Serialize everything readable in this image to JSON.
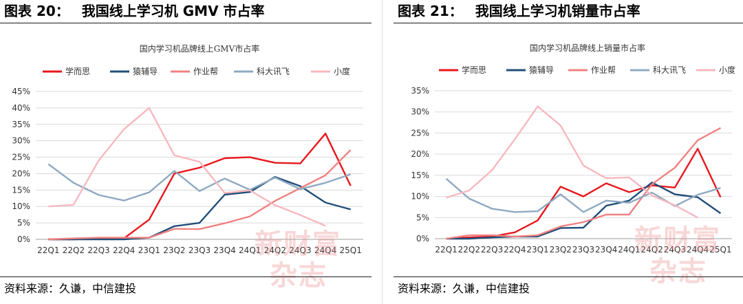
{
  "panels": [
    {
      "label": "图表 20：",
      "heading": "我国线上学习机 GMV 市占率",
      "source": "资料来源：久谦，中信建投",
      "watermark": [
        "新财富",
        "杂志"
      ]
    },
    {
      "label": "图表 21：",
      "heading": "我国线上学习机销量市占率",
      "source": "资料来源：久谦，中信建投",
      "watermark": [
        "新财富",
        "杂志"
      ]
    }
  ],
  "chart_data": [
    {
      "type": "line",
      "title": "国内学习机品牌线上GMV市占率",
      "categories": [
        "22Q1",
        "22Q2",
        "22Q3",
        "22Q4",
        "23Q1",
        "23Q2",
        "23Q3",
        "23Q4",
        "24Q1",
        "24Q2",
        "24Q3",
        "24Q4",
        "25Q1"
      ],
      "yticks": [
        "0%",
        "5%",
        "10%",
        "15%",
        "20%",
        "25%",
        "30%",
        "35%",
        "40%",
        "45%"
      ],
      "ylim": [
        0,
        45
      ],
      "grid": true,
      "legend_position": "top",
      "series": [
        {
          "name": "学而思",
          "color": "#e8161c",
          "values": [
            0,
            0,
            0.3,
            0.3,
            6,
            20,
            21.8,
            24.7,
            25,
            23.3,
            23.1,
            32.2,
            16.3
          ]
        },
        {
          "name": "猿辅导",
          "color": "#1f4e79",
          "values": [
            0,
            0,
            0,
            0,
            0.5,
            4,
            5,
            13.6,
            14.4,
            19,
            16.2,
            11.2,
            9.1
          ]
        },
        {
          "name": "作业帮",
          "color": "#f08080",
          "values": [
            0,
            0.3,
            0.5,
            0.5,
            0.5,
            3.2,
            3.1,
            4.9,
            7,
            11.7,
            15.6,
            19.5,
            27.2
          ]
        },
        {
          "name": "科大讯飞",
          "color": "#8ea9c1",
          "values": [
            22.9,
            17.2,
            13.5,
            11.8,
            14.3,
            20.8,
            14.7,
            18.5,
            15.1,
            18.8,
            15.3,
            17.2,
            19.8
          ]
        },
        {
          "name": "小度",
          "color": "#f7b8bf",
          "values": [
            10,
            10.5,
            24,
            33.5,
            40,
            25.6,
            23.6,
            14.1,
            14.9,
            10.4,
            7.4,
            4.1,
            null
          ]
        }
      ]
    },
    {
      "type": "line",
      "title": "国内学习机品牌线上销量市占率",
      "categories": [
        "22Q1",
        "22Q2",
        "22Q3",
        "22Q4",
        "23Q1",
        "23Q2",
        "23Q3",
        "23Q4",
        "24Q1",
        "24Q2",
        "24Q3",
        "24Q4",
        "25Q1"
      ],
      "yticks": [
        "0%",
        "5%",
        "10%",
        "15%",
        "20%",
        "25%",
        "30%",
        "35%"
      ],
      "ylim": [
        0,
        35
      ],
      "grid": true,
      "legend_position": "top",
      "series": [
        {
          "name": "学而思",
          "color": "#e8161c",
          "values": [
            0,
            0.3,
            0.5,
            1.5,
            4.3,
            12.3,
            10,
            13.1,
            11,
            12.6,
            12.1,
            21.3,
            9.8
          ]
        },
        {
          "name": "猿辅导",
          "color": "#1f4e79",
          "values": [
            0,
            0,
            0.3,
            0.5,
            0.5,
            2.5,
            2.6,
            7.8,
            9,
            13.3,
            10.5,
            9.8,
            6
          ]
        },
        {
          "name": "作业帮",
          "color": "#f08080",
          "values": [
            0,
            0.8,
            0.8,
            0.5,
            0.8,
            2.9,
            3.9,
            5.7,
            5.7,
            12.9,
            16.8,
            23.3,
            26.2
          ]
        },
        {
          "name": "科大讯飞",
          "color": "#8ea9c1",
          "values": [
            14.2,
            9.5,
            7.1,
            6.3,
            6.5,
            10.5,
            6.3,
            9,
            8.5,
            10.9,
            7.7,
            10.4,
            12
          ]
        },
        {
          "name": "小度",
          "color": "#f7b8bf",
          "values": [
            9.7,
            11.4,
            16.2,
            23.5,
            31.3,
            26.8,
            17.3,
            14.3,
            14.5,
            10.2,
            7.9,
            5,
            null
          ]
        }
      ]
    }
  ]
}
